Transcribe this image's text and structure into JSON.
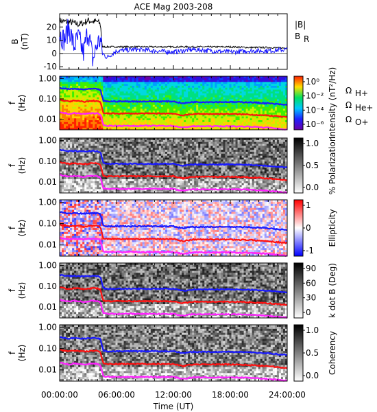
{
  "title": "ACE Mag 2003-208",
  "xlabel": "Time (UT)",
  "xticks": [
    "00:00:00",
    "06:00:00",
    "12:00:00",
    "18:00:00",
    "24:00:00"
  ],
  "colors": {
    "B": "#000000",
    "BR": "#1010ff",
    "H": "#1a1aff",
    "He": "#ff1010",
    "O": "#ff22ff"
  },
  "chart_data": [
    {
      "type": "line",
      "ylabel": "B\n(nT)",
      "ylim": [
        -12,
        30
      ],
      "yticks": [
        "20",
        "10",
        "0",
        "-10"
      ],
      "xlim": [
        0,
        24
      ],
      "legend": [
        "|B|",
        "B_R"
      ],
      "series": [
        {
          "name": "|B|",
          "x": [
            0,
            0.5,
            1,
            1.5,
            2,
            2.5,
            3,
            3.5,
            4,
            4.3,
            4.5,
            5,
            6,
            8,
            10,
            12,
            14,
            16,
            18,
            20,
            22,
            24
          ],
          "values": [
            25,
            24,
            24,
            23,
            22,
            23,
            25,
            24,
            24,
            22,
            5,
            5,
            5,
            5,
            5,
            5,
            5,
            5,
            5,
            4.5,
            4.5,
            4
          ]
        },
        {
          "name": "B_R",
          "x": [
            0,
            0.5,
            1,
            1.5,
            2,
            2.5,
            3,
            3.5,
            4,
            4.3,
            4.5,
            5,
            6,
            8,
            10,
            12,
            14,
            16,
            18,
            20,
            22,
            24
          ],
          "values": [
            15,
            10,
            20,
            5,
            12,
            0,
            18,
            -5,
            8,
            10,
            0,
            -3,
            2,
            3,
            2,
            1,
            3,
            2,
            1,
            2,
            2,
            3
          ]
        }
      ]
    },
    {
      "type": "heatmap",
      "ylabel": "f\n(Hz)",
      "yscale": "log",
      "ylim": [
        0.003,
        1.3
      ],
      "yticks": [
        "1.00",
        "0.10",
        "0.01"
      ],
      "colorbar_label": "Intensity (nT²/Hz)",
      "colorbar_ticks": [
        "10⁰",
        "10⁻²",
        "10⁻⁴",
        "10⁻⁶"
      ],
      "gyro_labels": [
        "Ω_H+",
        "Ω_He+",
        "Ω_O+"
      ]
    },
    {
      "type": "heatmap",
      "ylabel": "f\n(Hz)",
      "yscale": "log",
      "ylim": [
        0.003,
        1.3
      ],
      "yticks": [
        "1.00",
        "0.10",
        "0.01"
      ],
      "colorbar_label": "% Polarization",
      "colorbar_ticks": [
        "1.0",
        "0.5",
        "0.0"
      ]
    },
    {
      "type": "heatmap",
      "ylabel": "f\n(Hz)",
      "yscale": "log",
      "ylim": [
        0.003,
        1.3
      ],
      "yticks": [
        "1.00",
        "0.10",
        "0.01"
      ],
      "colorbar_label": "Ellipticity",
      "colorbar_ticks": [
        "1",
        "0",
        "-1"
      ]
    },
    {
      "type": "heatmap",
      "ylabel": "f\n(Hz)",
      "yscale": "log",
      "ylim": [
        0.003,
        1.3
      ],
      "yticks": [
        "1.00",
        "0.10",
        "0.01"
      ],
      "colorbar_label": "k dot B (Deg)",
      "colorbar_ticks": [
        "90",
        "60",
        "30",
        "0"
      ]
    },
    {
      "type": "heatmap",
      "ylabel": "f\n(Hz)",
      "yscale": "log",
      "ylim": [
        0.003,
        1.3
      ],
      "yticks": [
        "1.00",
        "0.10",
        "0.01"
      ],
      "colorbar_label": "Coherency",
      "colorbar_ticks": [
        "1.0",
        "0.5",
        "0.0"
      ]
    }
  ],
  "gyro_lines": {
    "x": [
      0,
      0.5,
      1,
      1.5,
      2,
      2.5,
      3,
      3.5,
      4,
      4.3,
      4.6,
      5,
      6,
      8,
      10,
      12,
      13,
      14,
      16,
      18,
      20,
      22,
      24
    ],
    "H": [
      0.35,
      0.32,
      0.3,
      0.31,
      0.3,
      0.29,
      0.3,
      0.31,
      0.3,
      0.28,
      0.08,
      0.075,
      0.075,
      0.075,
      0.075,
      0.075,
      0.06,
      0.07,
      0.07,
      0.07,
      0.068,
      0.06,
      0.05
    ],
    "He": [
      0.09,
      0.08,
      0.075,
      0.08,
      0.078,
      0.072,
      0.075,
      0.08,
      0.078,
      0.07,
      0.02,
      0.019,
      0.019,
      0.019,
      0.019,
      0.019,
      0.015,
      0.018,
      0.018,
      0.018,
      0.017,
      0.015,
      0.0125
    ],
    "O": [
      0.022,
      0.02,
      0.018,
      0.02,
      0.019,
      0.018,
      0.019,
      0.02,
      0.019,
      0.017,
      0.005,
      0.0048,
      0.0047,
      0.0047,
      0.0047,
      0.0047,
      0.0038,
      0.0045,
      0.0045,
      0.0045,
      0.0043,
      0.0038,
      0.0031
    ]
  }
}
